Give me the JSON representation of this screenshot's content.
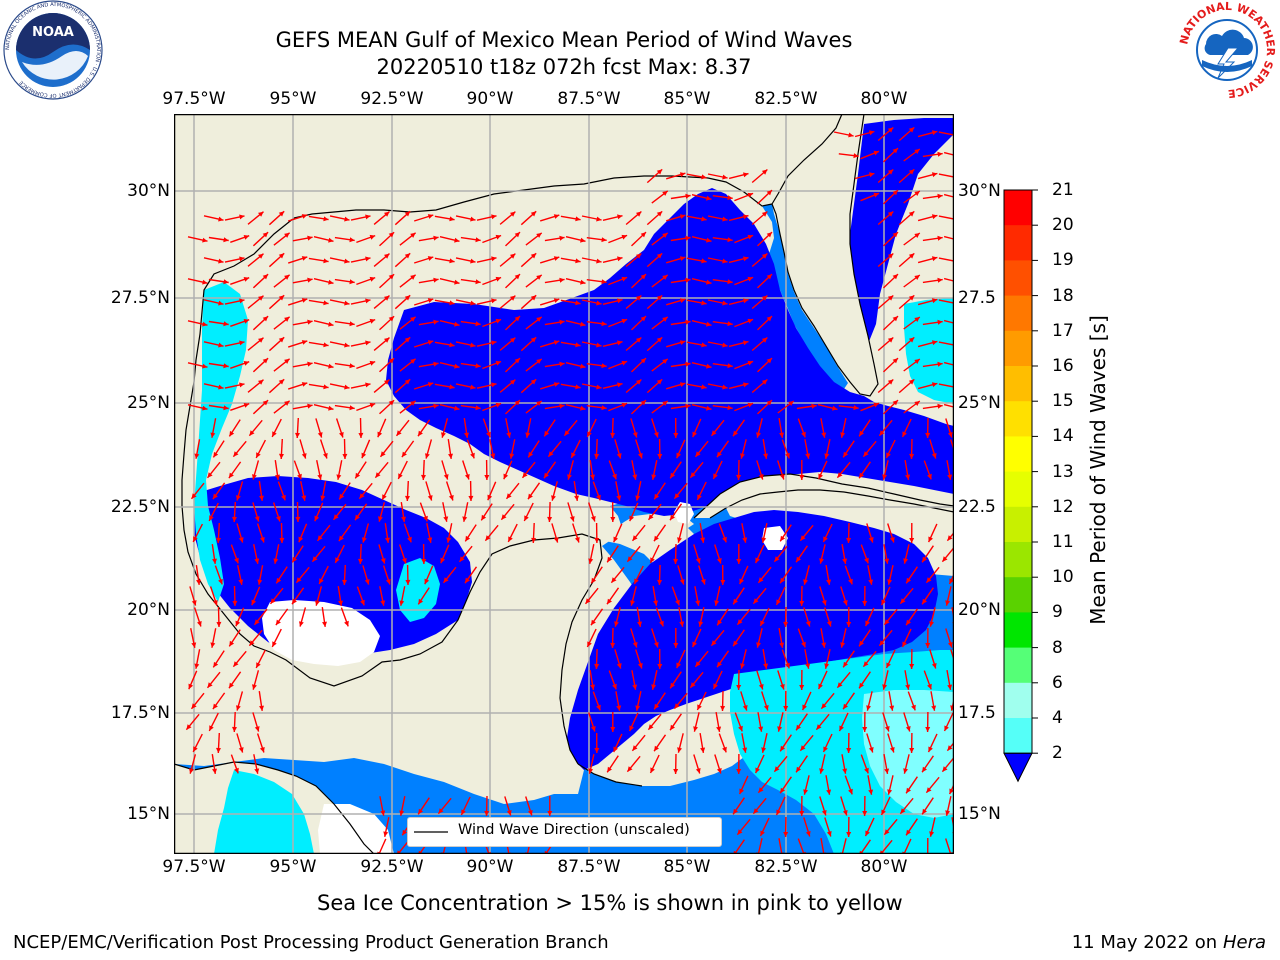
{
  "title_line1": "GEFS MEAN Gulf of Mexico Mean Period of Wind Waves",
  "title_line2": "20220510 t18z 072h fcst   Max: 8.37",
  "lon_ticks": [
    "97.5°W",
    "95°W",
    "92.5°W",
    "90°W",
    "87.5°W",
    "85°W",
    "82.5°W",
    "80°W"
  ],
  "lat_ticks_left": [
    "30°N",
    "27.5°N",
    "25°N",
    "22.5°N",
    "20°N",
    "17.5°N",
    "15°N"
  ],
  "lat_ticks_right": [
    "30°N",
    "27.5",
    "25°N",
    "22.5",
    "20°N",
    "17.5",
    "15°N"
  ],
  "legend_label": "Wind Wave Direction (unscaled)",
  "colorbar": {
    "title": "Mean Period of Wind Waves [s]",
    "labels": [
      "21",
      "20",
      "19",
      "18",
      "17",
      "16",
      "15",
      "14",
      "13",
      "12",
      "11",
      "10",
      "9",
      "8",
      "6",
      "4",
      "2"
    ],
    "colors": [
      "#ff0000",
      "#ff2a00",
      "#ff5000",
      "#ff7800",
      "#ff9b00",
      "#ffbe00",
      "#ffe000",
      "#ffff00",
      "#e6ff00",
      "#c8f000",
      "#9be600",
      "#5ad200",
      "#00e600",
      "#55ff77",
      "#a0ffee",
      "#55fff8",
      "#00eeff",
      "#0080ff",
      "#0000ff"
    ]
  },
  "map_colors": {
    "land": "#efeedc",
    "deep": "#0000ff",
    "mid": "#0080ff",
    "light": "#00eeff",
    "pale": "#80ffff",
    "coast": "#000000",
    "grid": "#b0b0b0",
    "arrow": "#ff0000"
  },
  "bottom_note": "Sea Ice Concentration > 15% is shown in pink to yellow",
  "footer_left": "NCEP/EMC/Verification Post Processing Product Generation Branch",
  "footer_right_date": "11 May 2022 on",
  "footer_right_host": "Hera",
  "logo_left_text": "NOAA",
  "logo_left_ring": "NATIONAL OCEANIC AND ATMOSPHERIC ADMINISTRATION · U.S. DEPARTMENT OF COMMERCE",
  "logo_right_ring": "NATIONAL WEATHER SERVICE"
}
